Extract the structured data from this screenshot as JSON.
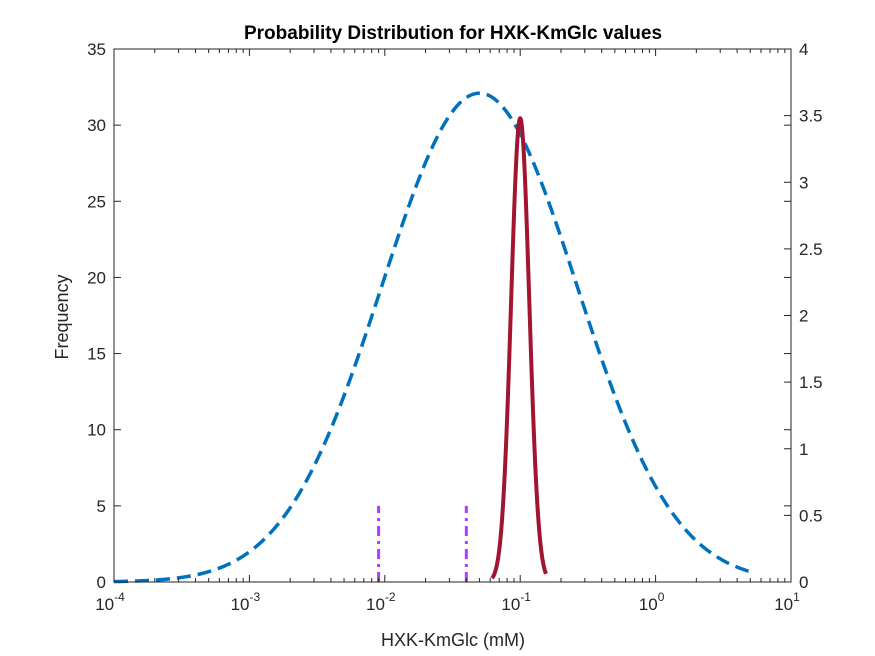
{
  "chart_data": {
    "type": "line",
    "title": "Probability Distribution for HXK-KmGlc values",
    "xlabel": "HXK-KmGlc (mM)",
    "ylabel": "Frequency",
    "x_scale": "log",
    "xlim": [
      0.0001,
      10
    ],
    "x_ticks": [
      {
        "base": "10",
        "exp": "-4"
      },
      {
        "base": "10",
        "exp": "-3"
      },
      {
        "base": "10",
        "exp": "-2"
      },
      {
        "base": "10",
        "exp": "-1"
      },
      {
        "base": "10",
        "exp": "0"
      },
      {
        "base": "10",
        "exp": "1"
      }
    ],
    "y_left": {
      "lim": [
        0,
        35
      ],
      "ticks": [
        "0",
        "5",
        "10",
        "15",
        "20",
        "25",
        "30",
        "35"
      ]
    },
    "y_right": {
      "lim": [
        0,
        4
      ],
      "ticks": [
        "0",
        "0.5",
        "1",
        "1.5",
        "2",
        "2.5",
        "3",
        "3.5",
        "4"
      ]
    },
    "grid": false,
    "series": [
      {
        "style": "dashed",
        "axis": "left",
        "color": "#0072BD",
        "curve": "lognormal",
        "peak_x": 0.05,
        "peak_y": 32.1,
        "sigma_decades": 0.72,
        "x_range": [
          0.0001,
          5
        ]
      },
      {
        "style": "solid",
        "axis": "right",
        "color": "#A2142F",
        "curve": "lognormal",
        "peak_x": 0.1,
        "peak_y": 3.48,
        "sigma_decades": 0.067,
        "x_range": [
          0.062,
          0.155
        ]
      },
      {
        "style": "dash-dot",
        "axis": "left",
        "color": "#B23BFF",
        "type": "vlines",
        "x": [
          0.009,
          0.04
        ],
        "y": 5
      }
    ]
  }
}
